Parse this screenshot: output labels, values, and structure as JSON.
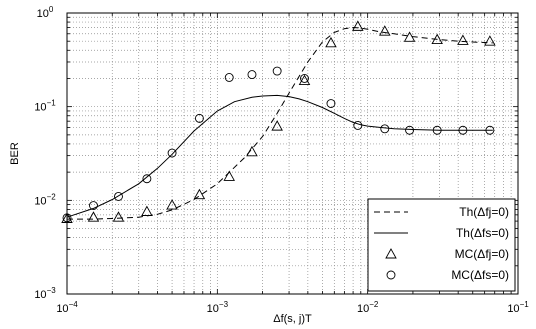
{
  "chart_data": {
    "type": "line",
    "xlabel": "Δf(s, j)T",
    "ylabel": "BER",
    "xscale": "log",
    "yscale": "log",
    "xlim": [
      0.0001,
      0.1
    ],
    "ylim": [
      0.001,
      1
    ],
    "grid": true,
    "legend_position": "bottom-right",
    "x_ticks": [
      {
        "value": 0.0001,
        "base": "10",
        "exp": "−4"
      },
      {
        "value": 0.001,
        "base": "10",
        "exp": "−3"
      },
      {
        "value": 0.01,
        "base": "10",
        "exp": "−2"
      },
      {
        "value": 0.1,
        "base": "10",
        "exp": "−1"
      }
    ],
    "y_ticks": [
      {
        "value": 0.001,
        "base": "10",
        "exp": "−3"
      },
      {
        "value": 0.01,
        "base": "10",
        "exp": "−2"
      },
      {
        "value": 0.1,
        "base": "10",
        "exp": "−1"
      },
      {
        "value": 1,
        "base": "10",
        "exp": "0"
      }
    ],
    "series": [
      {
        "name": "Th(Δfj=0)",
        "style": "dashed",
        "color": "#000000",
        "x": [
          0.0001,
          0.00015,
          0.0002,
          0.0003,
          0.0004,
          0.0005,
          0.0007,
          0.001,
          0.0015,
          0.002,
          0.0025,
          0.003,
          0.004,
          0.005,
          0.006,
          0.007,
          0.008,
          0.009,
          0.01,
          0.012,
          0.015,
          0.02,
          0.03,
          0.04,
          0.05,
          0.068
        ],
        "y": [
          0.0063,
          0.0063,
          0.0064,
          0.0066,
          0.0071,
          0.0079,
          0.0102,
          0.015,
          0.028,
          0.048,
          0.085,
          0.14,
          0.3,
          0.49,
          0.62,
          0.68,
          0.7,
          0.69,
          0.67,
          0.63,
          0.6,
          0.56,
          0.52,
          0.5,
          0.49,
          0.48
        ]
      },
      {
        "name": "Th(Δfs=0)",
        "style": "solid",
        "color": "#000000",
        "x": [
          0.0001,
          0.00015,
          0.0002,
          0.0003,
          0.0004,
          0.0005,
          0.0007,
          0.001,
          0.0013,
          0.0017,
          0.002,
          0.0025,
          0.003,
          0.0035,
          0.004,
          0.005,
          0.006,
          0.007,
          0.008,
          0.009,
          0.01,
          0.012,
          0.015,
          0.02,
          0.03,
          0.04,
          0.05,
          0.068
        ],
        "y": [
          0.0066,
          0.0082,
          0.0102,
          0.015,
          0.022,
          0.031,
          0.055,
          0.09,
          0.113,
          0.126,
          0.13,
          0.132,
          0.128,
          0.121,
          0.113,
          0.098,
          0.085,
          0.075,
          0.068,
          0.064,
          0.062,
          0.06,
          0.058,
          0.057,
          0.056,
          0.056,
          0.056,
          0.056
        ]
      },
      {
        "name": "MC(Δfj=0)",
        "style": "marker",
        "marker": "triangle",
        "color": "#000000",
        "x": [
          0.0001,
          0.00015,
          0.00022,
          0.00034,
          0.0005,
          0.00076,
          0.0012,
          0.0017,
          0.0025,
          0.0038,
          0.0057,
          0.0086,
          0.013,
          0.019,
          0.029,
          0.043,
          0.065
        ],
        "y": [
          0.0064,
          0.0066,
          0.0066,
          0.0076,
          0.0089,
          0.0115,
          0.018,
          0.033,
          0.062,
          0.19,
          0.48,
          0.72,
          0.64,
          0.55,
          0.52,
          0.51,
          0.5
        ]
      },
      {
        "name": "MC(Δfs=0)",
        "style": "marker",
        "marker": "circle",
        "color": "#000000",
        "x": [
          0.0001,
          0.00015,
          0.00022,
          0.00034,
          0.0005,
          0.00076,
          0.0012,
          0.0017,
          0.0025,
          0.0038,
          0.0057,
          0.0086,
          0.013,
          0.019,
          0.029,
          0.043,
          0.065
        ],
        "y": [
          0.0065,
          0.0088,
          0.011,
          0.017,
          0.032,
          0.075,
          0.205,
          0.22,
          0.24,
          0.2,
          0.108,
          0.063,
          0.058,
          0.056,
          0.056,
          0.056,
          0.056
        ]
      }
    ]
  }
}
